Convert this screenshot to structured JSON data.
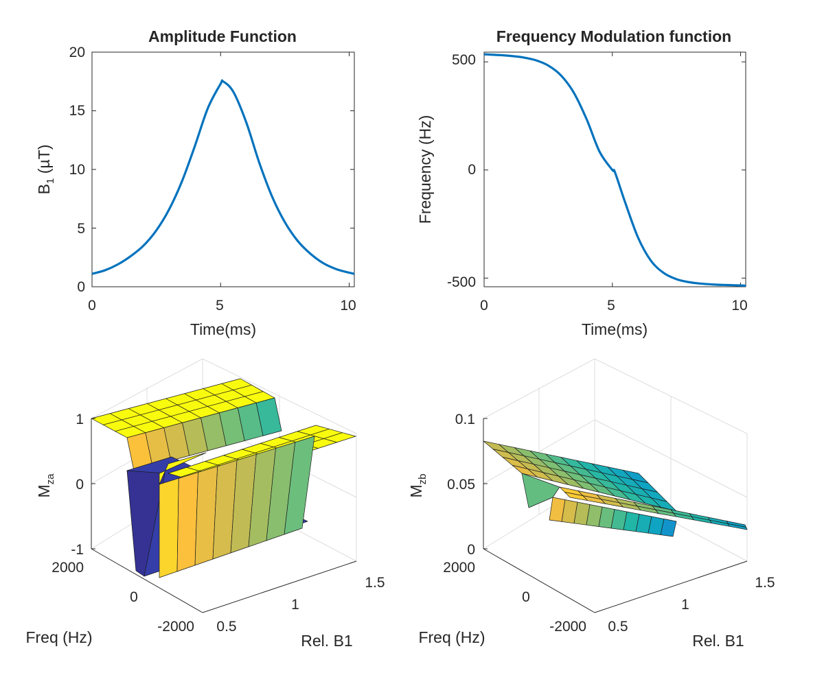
{
  "colors": {
    "line": "#0072BD",
    "axis": "#262626",
    "grid": "#dcdcdc"
  },
  "chart_data": [
    {
      "type": "line",
      "title": "Amplitude Function",
      "xlabel": "Time(ms)",
      "ylabel_main": "B",
      "ylabel_sub": "1",
      "ylabel_rest": " (µT)",
      "xlim": [
        0,
        10.2
      ],
      "ylim": [
        0,
        20
      ],
      "xticks": [
        0,
        5,
        10
      ],
      "xtick_labels": [
        "0",
        "5",
        "10"
      ],
      "yticks": [
        0,
        5,
        10,
        15,
        20
      ],
      "ytick_labels": [
        "0",
        "5",
        "10",
        "15",
        "20"
      ],
      "series": [
        {
          "x": [
            0,
            0.5,
            1,
            1.5,
            2,
            2.5,
            3,
            3.5,
            4,
            4.5,
            5,
            5.1,
            5.5,
            6,
            6.5,
            7,
            7.5,
            8,
            8.5,
            9,
            9.5,
            10,
            10.2
          ],
          "y": [
            1.1,
            1.4,
            1.9,
            2.6,
            3.5,
            4.8,
            6.6,
            9.0,
            12.0,
            15.2,
            17.3,
            17.5,
            16.6,
            14.0,
            10.6,
            7.7,
            5.5,
            3.9,
            2.8,
            2.0,
            1.5,
            1.2,
            1.1
          ]
        }
      ]
    },
    {
      "type": "line",
      "title": "Frequency Modulation function",
      "xlabel": "Time(ms)",
      "ylabel": "Frequency (Hz)",
      "xlim": [
        0,
        10.2
      ],
      "ylim": [
        -540,
        545
      ],
      "xticks": [
        0,
        5,
        10
      ],
      "xtick_labels": [
        "0",
        "5",
        "10"
      ],
      "yticks": [
        -500,
        0,
        500
      ],
      "ytick_labels": [
        "-500",
        "0",
        "500"
      ],
      "series": [
        {
          "x": [
            0,
            0.5,
            1,
            1.5,
            2,
            2.5,
            3,
            3.5,
            4,
            4.5,
            5,
            5.1,
            5.5,
            6,
            6.5,
            7,
            7.5,
            8,
            8.5,
            9,
            9.5,
            10,
            10.2
          ],
          "y": [
            535,
            532,
            528,
            521,
            508,
            483,
            437,
            357,
            234,
            85,
            0,
            -10,
            -150,
            -312,
            -419,
            -476,
            -505,
            -519,
            -526,
            -530,
            -532,
            -534,
            -535
          ]
        }
      ]
    },
    {
      "type": "surface",
      "xlabel": "Rel. B1",
      "ylabel": "Freq (Hz)",
      "zlabel_main": "M",
      "zlabel_sub": "za",
      "xlim": [
        0.5,
        1.5
      ],
      "ylim": [
        -2000,
        2000
      ],
      "zlim": [
        -1,
        1
      ],
      "xtick_labels": [
        "0.5",
        "1",
        "1.5"
      ],
      "ytick_labels": [
        "-2000",
        "0",
        "2000"
      ],
      "ztick_labels": [
        "-1",
        "0",
        "1"
      ],
      "colormap": "parula"
    },
    {
      "type": "surface",
      "xlabel": "Rel. B1",
      "ylabel": "Freq (Hz)",
      "zlabel_main": "M",
      "zlabel_sub": "zb",
      "xlim": [
        0.5,
        1.5
      ],
      "ylim": [
        -2000,
        2000
      ],
      "zlim": [
        0,
        0.1
      ],
      "xtick_labels": [
        "0.5",
        "1",
        "1.5"
      ],
      "ytick_labels": [
        "-2000",
        "0",
        "2000"
      ],
      "ztick_labels": [
        "0",
        "0.05",
        "0.1"
      ],
      "colormap": "parula"
    }
  ]
}
